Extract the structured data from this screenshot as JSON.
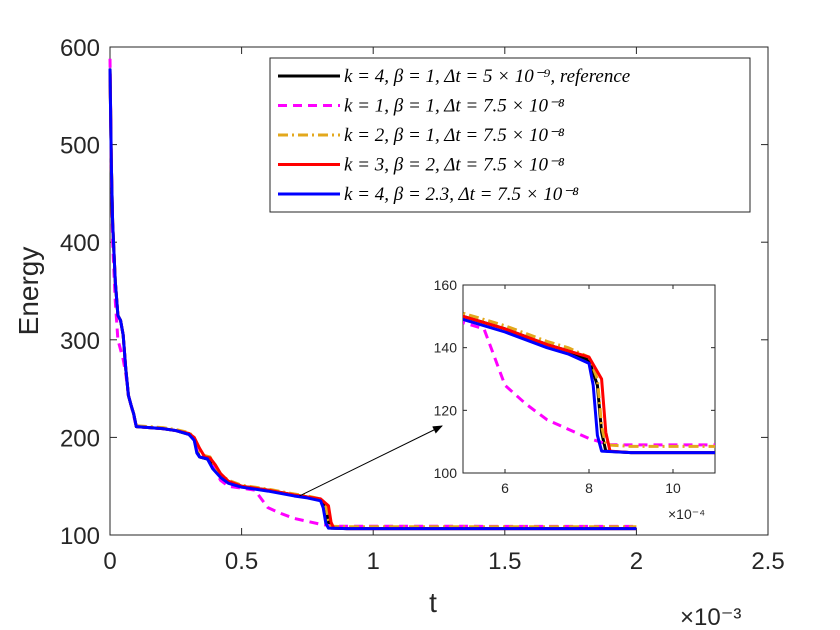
{
  "chart_data": {
    "type": "line",
    "xlabel": "t",
    "ylabel": "Energy",
    "xlim": [
      0,
      0.0025
    ],
    "ylim": [
      100,
      600
    ],
    "x_exponent_label": "×10⁻³",
    "xticks": [
      0,
      0.0005,
      0.001,
      0.0015,
      0.002,
      0.0025
    ],
    "xtick_labels": [
      "0",
      "0.5",
      "1",
      "1.5",
      "2",
      "2.5"
    ],
    "yticks": [
      100,
      200,
      300,
      400,
      500,
      600
    ],
    "ytick_labels": [
      "100",
      "200",
      "300",
      "400",
      "500",
      "600"
    ],
    "legend_position": "top-right",
    "series": [
      {
        "name": "k = 4, β = 1, Δt = 5 × 10⁻⁹, reference",
        "color": "#000000",
        "dash": "solid",
        "points": [
          [
            0,
            578
          ],
          [
            5e-06,
            480
          ],
          [
            1e-05,
            420
          ],
          [
            2e-05,
            360
          ],
          [
            3e-05,
            325
          ],
          [
            4e-05,
            320
          ],
          [
            5e-05,
            305
          ],
          [
            6e-05,
            270
          ],
          [
            7e-05,
            243
          ],
          [
            8e-05,
            233
          ],
          [
            9e-05,
            224
          ],
          [
            0.0001,
            211
          ],
          [
            0.00015,
            210
          ],
          [
            0.0002,
            209
          ],
          [
            0.00025,
            207
          ],
          [
            0.0003,
            203
          ],
          [
            0.00032,
            198
          ],
          [
            0.00033,
            186
          ],
          [
            0.00034,
            180
          ],
          [
            0.00038,
            177
          ],
          [
            0.0004,
            167
          ],
          [
            0.00042,
            160
          ],
          [
            0.00045,
            154
          ],
          [
            0.0005,
            150
          ],
          [
            0.0006,
            146
          ],
          [
            0.0007,
            141
          ],
          [
            0.00075,
            139
          ],
          [
            0.0008,
            136
          ],
          [
            0.00082,
            128
          ],
          [
            0.00083,
            113
          ],
          [
            0.00084,
            107
          ],
          [
            0.0009,
            106.5
          ],
          [
            0.002,
            106.5
          ]
        ]
      },
      {
        "name": "k = 1, β = 1, Δt = 7.5 × 10⁻⁸",
        "color": "#ff00ff",
        "dash": "dashed",
        "points": [
          [
            0,
            588
          ],
          [
            5e-06,
            480
          ],
          [
            1e-05,
            400
          ],
          [
            2e-05,
            340
          ],
          [
            3e-05,
            300
          ],
          [
            4e-05,
            290
          ],
          [
            5e-05,
            280
          ],
          [
            6e-05,
            265
          ],
          [
            7e-05,
            243
          ],
          [
            8e-05,
            233
          ],
          [
            9e-05,
            222
          ],
          [
            0.0001,
            211
          ],
          [
            0.00015,
            210
          ],
          [
            0.0002,
            209
          ],
          [
            0.00025,
            207
          ],
          [
            0.0003,
            203
          ],
          [
            0.00032,
            198
          ],
          [
            0.00033,
            187
          ],
          [
            0.00034,
            182
          ],
          [
            0.00038,
            178
          ],
          [
            0.0004,
            166
          ],
          [
            0.00042,
            156
          ],
          [
            0.00045,
            150
          ],
          [
            0.0005,
            148
          ],
          [
            0.00055,
            146
          ],
          [
            0.0006,
            128
          ],
          [
            0.00065,
            122
          ],
          [
            0.0007,
            117
          ],
          [
            0.00075,
            114
          ],
          [
            0.0008,
            111
          ],
          [
            0.00085,
            109
          ],
          [
            0.002,
            108.8
          ]
        ]
      },
      {
        "name": "k = 2, β = 1, Δt = 7.5 × 10⁻⁸",
        "color": "#e3a81c",
        "dash": "dashdot",
        "points": [
          [
            0,
            578
          ],
          [
            5e-06,
            480
          ],
          [
            1e-05,
            420
          ],
          [
            2e-05,
            360
          ],
          [
            3e-05,
            325
          ],
          [
            4e-05,
            320
          ],
          [
            5e-05,
            305
          ],
          [
            6e-05,
            270
          ],
          [
            7e-05,
            243
          ],
          [
            8e-05,
            233
          ],
          [
            9e-05,
            224
          ],
          [
            0.0001,
            212
          ],
          [
            0.00015,
            211
          ],
          [
            0.0002,
            210
          ],
          [
            0.00025,
            208
          ],
          [
            0.0003,
            205
          ],
          [
            0.00032,
            200
          ],
          [
            0.00033,
            190
          ],
          [
            0.00035,
            182
          ],
          [
            0.00038,
            180
          ],
          [
            0.0004,
            170
          ],
          [
            0.00042,
            162
          ],
          [
            0.00045,
            156
          ],
          [
            0.0005,
            151
          ],
          [
            0.0006,
            147
          ],
          [
            0.0007,
            142
          ],
          [
            0.00075,
            140
          ],
          [
            0.0008,
            137
          ],
          [
            0.00082,
            130
          ],
          [
            0.00083,
            115
          ],
          [
            0.00084,
            109
          ],
          [
            0.0009,
            108.5
          ],
          [
            0.002,
            108.5
          ]
        ]
      },
      {
        "name": "k = 3, β = 2, Δt = 7.5 × 10⁻⁸",
        "color": "#ff0000",
        "dash": "solid",
        "points": [
          [
            0,
            578
          ],
          [
            5e-06,
            480
          ],
          [
            1e-05,
            420
          ],
          [
            2e-05,
            360
          ],
          [
            3e-05,
            325
          ],
          [
            4e-05,
            320
          ],
          [
            5e-05,
            305
          ],
          [
            6e-05,
            270
          ],
          [
            7e-05,
            243
          ],
          [
            8e-05,
            233
          ],
          [
            9e-05,
            224
          ],
          [
            0.0001,
            211
          ],
          [
            0.00015,
            210
          ],
          [
            0.0002,
            209
          ],
          [
            0.00025,
            207
          ],
          [
            0.0003,
            204
          ],
          [
            0.00032,
            200
          ],
          [
            0.00034,
            189
          ],
          [
            0.00036,
            180
          ],
          [
            0.00038,
            179
          ],
          [
            0.0004,
            172
          ],
          [
            0.00042,
            163
          ],
          [
            0.00045,
            155
          ],
          [
            0.0005,
            150
          ],
          [
            0.0006,
            146
          ],
          [
            0.0007,
            141
          ],
          [
            0.00075,
            139
          ],
          [
            0.0008,
            137
          ],
          [
            0.00083,
            130
          ],
          [
            0.00084,
            113
          ],
          [
            0.00085,
            107
          ],
          [
            0.0009,
            106.5
          ],
          [
            0.002,
            106.5
          ]
        ]
      },
      {
        "name": "k = 4, β = 2.3, Δt = 7.5 × 10⁻⁸",
        "color": "#0000ff",
        "dash": "solid",
        "points": [
          [
            0,
            578
          ],
          [
            5e-06,
            480
          ],
          [
            1e-05,
            420
          ],
          [
            2e-05,
            360
          ],
          [
            3e-05,
            325
          ],
          [
            4e-05,
            320
          ],
          [
            5e-05,
            305
          ],
          [
            6e-05,
            270
          ],
          [
            7e-05,
            243
          ],
          [
            8e-05,
            233
          ],
          [
            9e-05,
            224
          ],
          [
            0.0001,
            211
          ],
          [
            0.00015,
            210
          ],
          [
            0.0002,
            209
          ],
          [
            0.00025,
            207
          ],
          [
            0.0003,
            203
          ],
          [
            0.00032,
            197
          ],
          [
            0.00033,
            184
          ],
          [
            0.00034,
            180
          ],
          [
            0.00037,
            178
          ],
          [
            0.00039,
            168
          ],
          [
            0.00042,
            159
          ],
          [
            0.00045,
            153
          ],
          [
            0.0005,
            149
          ],
          [
            0.0006,
            145
          ],
          [
            0.0007,
            140
          ],
          [
            0.00075,
            138
          ],
          [
            0.0008,
            135
          ],
          [
            0.00081,
            128
          ],
          [
            0.00082,
            112
          ],
          [
            0.00083,
            107
          ],
          [
            0.0009,
            106.5
          ],
          [
            0.002,
            106.5
          ]
        ]
      }
    ],
    "inset": {
      "xlim": [
        0.0005,
        0.0011
      ],
      "ylim": [
        100,
        160
      ],
      "xticks": [
        0.0006,
        0.0008,
        0.001
      ],
      "xtick_labels": [
        "6",
        "8",
        "10"
      ],
      "yticks": [
        100,
        120,
        140,
        160
      ],
      "ytick_labels": [
        "100",
        "120",
        "140",
        "160"
      ],
      "x_exponent_label": "×10⁻⁴",
      "arrow_from": [
        0.00072,
        140
      ],
      "arrow_to": [
        0.00083,
        115
      ]
    }
  }
}
